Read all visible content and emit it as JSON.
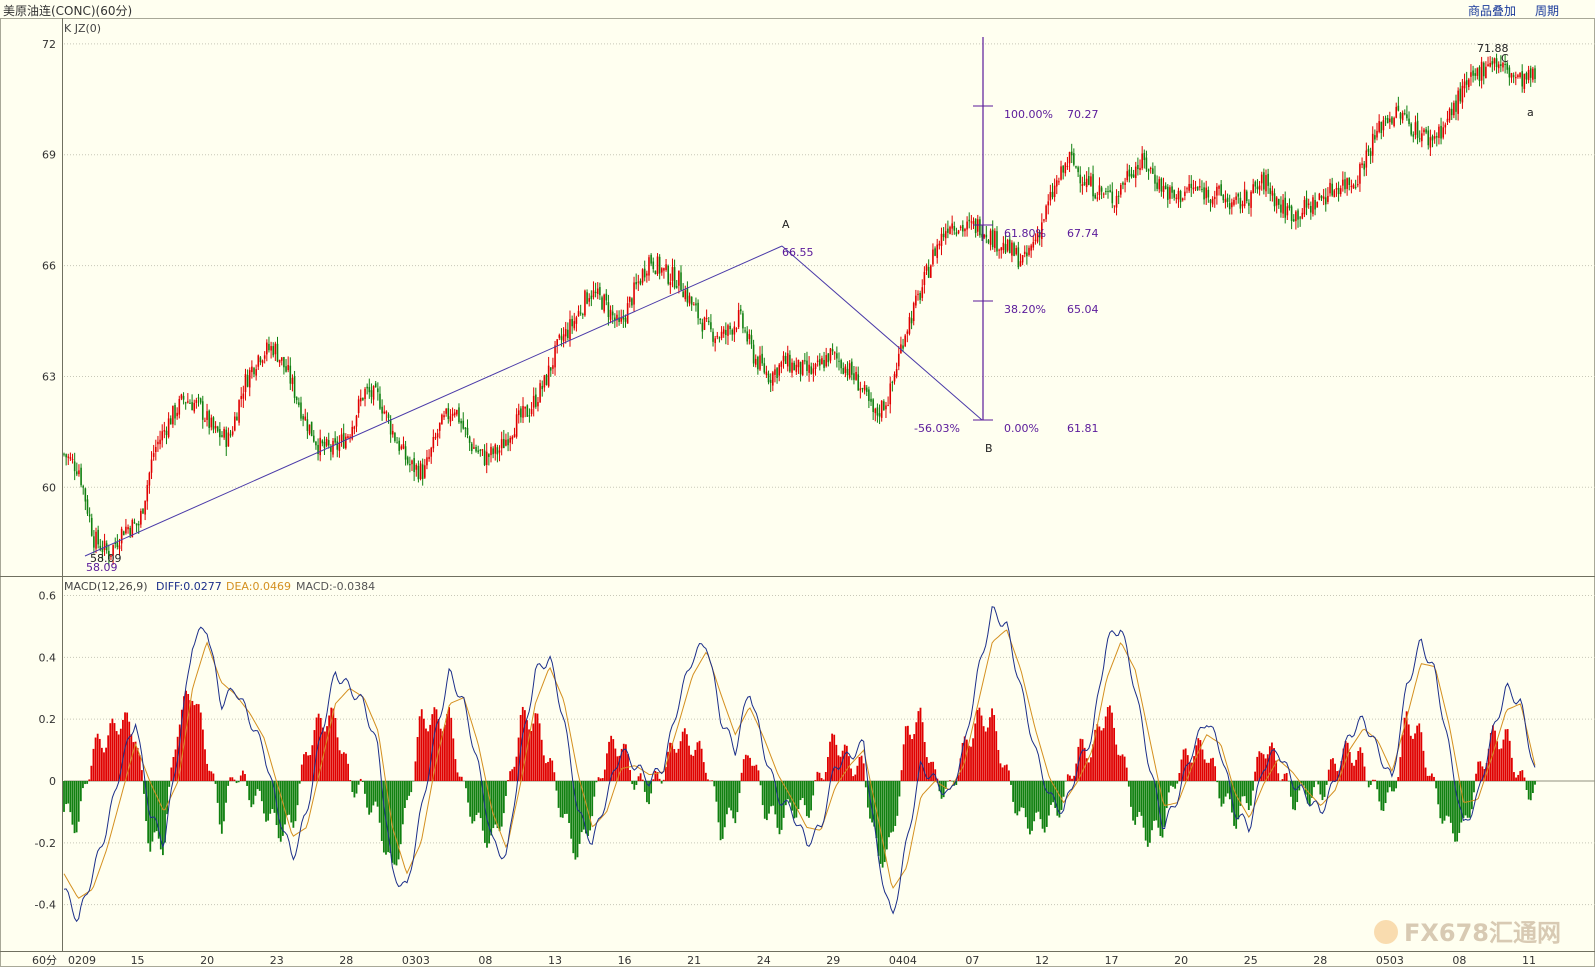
{
  "header": {
    "title": "美原油连(CONC)(60分)",
    "overlay_button": "商品叠加",
    "period_button": "周期"
  },
  "price_panel": {
    "indicator_label": "K  JZ(0)",
    "annotations": {
      "point_A_label": "A",
      "point_A_value": "66.55",
      "point_B_label": "B",
      "low_value_1": "58.09",
      "low_value_2": "58.09",
      "high_value": "71.88",
      "point_c_label": "C",
      "point_a_label": "a",
      "retracement_pct": "-56.03%"
    },
    "fibonacci": [
      {
        "pct": "100.00%",
        "price": "70.27"
      },
      {
        "pct": "61.80%",
        "price": "67.74"
      },
      {
        "pct": "38.20%",
        "price": "65.04"
      },
      {
        "pct": "0.00%",
        "price": "61.81"
      }
    ]
  },
  "macd_panel": {
    "label": "MACD(12,26,9)",
    "diff": "DIFF:0.0277",
    "dea": "DEA:0.0469",
    "macd": "MACD:-0.0384"
  },
  "footer": {
    "period_label": "60分",
    "watermark": "FX678汇通网"
  },
  "colors": {
    "background": "#fffff0",
    "up_candle": "#e00000",
    "down_candle": "#108010",
    "diff_line": "#1c2f8a",
    "dea_line": "#d49020",
    "drawing": "#5a1a9a"
  },
  "chart_data": [
    {
      "type": "candlestick",
      "title": "美原油连(CONC)(60分)",
      "yticks": [
        60,
        63,
        66,
        69,
        72
      ],
      "ylim": [
        57.6,
        72.7
      ],
      "xticks": [
        "0209",
        "15",
        "20",
        "23",
        "28",
        "0303",
        "08",
        "13",
        "16",
        "21",
        "24",
        "29",
        "0404",
        "07",
        "12",
        "17",
        "20",
        "25",
        "28",
        "0503",
        "08",
        "11"
      ],
      "close_path": [
        [
          0,
          60.9
        ],
        [
          2,
          60.5
        ],
        [
          4,
          58.6
        ],
        [
          6,
          58.2
        ],
        [
          8,
          58.9
        ],
        [
          10,
          59.0
        ],
        [
          12,
          61.0
        ],
        [
          14,
          61.8
        ],
        [
          16,
          62.4
        ],
        [
          18,
          62.2
        ],
        [
          20,
          61.5
        ],
        [
          22,
          61.3
        ],
        [
          24,
          62.8
        ],
        [
          26,
          63.6
        ],
        [
          28,
          63.8
        ],
        [
          30,
          63.0
        ],
        [
          32,
          61.9
        ],
        [
          34,
          61.1
        ],
        [
          36,
          61.0
        ],
        [
          38,
          61.5
        ],
        [
          40,
          62.6
        ],
        [
          42,
          62.4
        ],
        [
          44,
          61.4
        ],
        [
          46,
          60.6
        ],
        [
          48,
          60.4
        ],
        [
          50,
          61.6
        ],
        [
          52,
          62.2
        ],
        [
          54,
          61.2
        ],
        [
          56,
          60.8
        ],
        [
          58,
          61.0
        ],
        [
          60,
          61.7
        ],
        [
          62,
          62.1
        ],
        [
          64,
          62.8
        ],
        [
          66,
          63.9
        ],
        [
          68,
          64.5
        ],
        [
          70,
          65.3
        ],
        [
          72,
          65.0
        ],
        [
          74,
          64.3
        ],
        [
          76,
          65.3
        ],
        [
          78,
          66.2
        ],
        [
          80,
          65.8
        ],
        [
          82,
          65.6
        ],
        [
          84,
          64.8
        ],
        [
          86,
          64.2
        ],
        [
          88,
          64.1
        ],
        [
          90,
          64.6
        ],
        [
          92,
          63.5
        ],
        [
          94,
          63.0
        ],
        [
          96,
          63.4
        ],
        [
          98,
          63.2
        ],
        [
          100,
          63.1
        ],
        [
          102,
          63.6
        ],
        [
          104,
          63.3
        ],
        [
          106,
          62.8
        ],
        [
          108,
          61.9
        ],
        [
          110,
          62.5
        ],
        [
          112,
          64.2
        ],
        [
          114,
          65.2
        ],
        [
          116,
          66.4
        ],
        [
          118,
          67.2
        ],
        [
          120,
          67.0
        ],
        [
          122,
          67.1
        ],
        [
          124,
          66.7
        ],
        [
          126,
          66.4
        ],
        [
          128,
          66.1
        ],
        [
          130,
          67.0
        ],
        [
          132,
          68.1
        ],
        [
          134,
          68.9
        ],
        [
          136,
          68.3
        ],
        [
          138,
          68.0
        ],
        [
          140,
          67.8
        ],
        [
          142,
          68.6
        ],
        [
          144,
          68.8
        ],
        [
          146,
          68.2
        ],
        [
          148,
          67.8
        ],
        [
          150,
          68.1
        ],
        [
          152,
          68.0
        ],
        [
          154,
          67.9
        ],
        [
          156,
          67.6
        ],
        [
          158,
          67.9
        ],
        [
          160,
          68.3
        ],
        [
          162,
          67.6
        ],
        [
          164,
          67.4
        ],
        [
          166,
          67.6
        ],
        [
          168,
          67.9
        ],
        [
          170,
          68.2
        ],
        [
          172,
          68.3
        ],
        [
          174,
          69.2
        ],
        [
          176,
          70.0
        ],
        [
          178,
          70.1
        ],
        [
          180,
          69.7
        ],
        [
          182,
          69.4
        ],
        [
          184,
          69.8
        ],
        [
          186,
          70.6
        ],
        [
          188,
          71.1
        ],
        [
          190,
          71.6
        ],
        [
          192,
          71.3
        ],
        [
          194,
          71.0
        ],
        [
          196,
          71.1
        ]
      ],
      "annotation_values": {
        "A": 66.55,
        "B": 61.81,
        "low": 58.09,
        "high": 71.88
      }
    },
    {
      "type": "bar",
      "title": "MACD(12,26,9)",
      "yticks": [
        -0.4,
        -0.2,
        0,
        0.2,
        0.4,
        0.6
      ],
      "ylim": [
        -0.55,
        0.66
      ],
      "series": [
        {
          "name": "DIFF",
          "values": [
            -0.35,
            -0.45,
            -0.3,
            -0.15,
            0.05,
            0.2,
            -0.1,
            -0.2,
            0.1,
            0.45,
            0.5,
            0.25,
            0.3,
            0.2,
            0.1,
            -0.1,
            -0.25,
            -0.1,
            0.15,
            0.35,
            0.3,
            0.25,
            0.1,
            -0.3,
            -0.35,
            -0.1,
            0.15,
            0.35,
            0.25,
            0.05,
            -0.2,
            -0.25,
            0.1,
            0.35,
            0.4,
            0.2,
            -0.1,
            -0.2,
            -0.05,
            0.1,
            0.05,
            0.0,
            0.05,
            0.25,
            0.4,
            0.45,
            0.2,
            0.1,
            0.3,
            0.1,
            -0.05,
            -0.1,
            -0.2,
            -0.15,
            0.05,
            0.08,
            0.12,
            -0.25,
            -0.45,
            -0.2,
            0.05,
            0.0,
            -0.05,
            0.1,
            0.35,
            0.55,
            0.5,
            0.3,
            0.1,
            -0.05,
            -0.1,
            0.05,
            0.15,
            0.45,
            0.5,
            0.3,
            0.05,
            -0.15,
            -0.05,
            0.1,
            0.2,
            0.1,
            -0.1,
            -0.15,
            0.05,
            0.1,
            0.0,
            -0.05,
            -0.1,
            0.0,
            0.15,
            0.2,
            0.1,
            0.0,
            0.3,
            0.45,
            0.35,
            0.1,
            -0.15,
            -0.05,
            0.15,
            0.3,
            0.25,
            0.03
          ]
        },
        {
          "name": "DEA",
          "values": [
            -0.3,
            -0.38,
            -0.35,
            -0.22,
            -0.05,
            0.12,
            0.0,
            -0.1,
            0.0,
            0.3,
            0.45,
            0.32,
            0.28,
            0.22,
            0.14,
            -0.02,
            -0.18,
            -0.15,
            0.05,
            0.25,
            0.3,
            0.27,
            0.16,
            -0.15,
            -0.3,
            -0.2,
            0.05,
            0.25,
            0.27,
            0.12,
            -0.1,
            -0.22,
            0.0,
            0.25,
            0.37,
            0.26,
            0.02,
            -0.15,
            -0.1,
            0.04,
            0.05,
            0.02,
            0.03,
            0.18,
            0.34,
            0.42,
            0.28,
            0.15,
            0.24,
            0.14,
            0.02,
            -0.06,
            -0.15,
            -0.16,
            -0.02,
            0.05,
            0.1,
            -0.12,
            -0.35,
            -0.28,
            -0.05,
            0.0,
            -0.03,
            0.05,
            0.25,
            0.45,
            0.49,
            0.36,
            0.17,
            0.01,
            -0.07,
            0.0,
            0.1,
            0.33,
            0.45,
            0.36,
            0.14,
            -0.08,
            -0.07,
            0.05,
            0.15,
            0.12,
            -0.04,
            -0.12,
            -0.01,
            0.07,
            0.03,
            -0.03,
            -0.08,
            -0.03,
            0.1,
            0.17,
            0.13,
            0.03,
            0.2,
            0.38,
            0.37,
            0.18,
            -0.07,
            -0.06,
            0.08,
            0.23,
            0.25,
            0.05
          ]
        }
      ]
    }
  ]
}
